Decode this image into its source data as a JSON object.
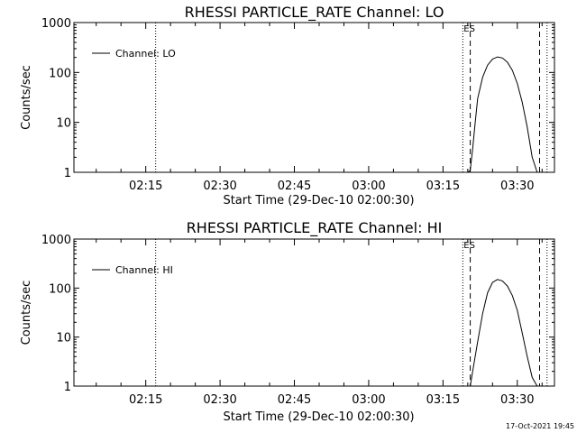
{
  "chart_data": [
    {
      "type": "line",
      "title": "RHESSI PARTICLE_RATE Channel: LO",
      "ylabel": "Counts/sec",
      "xlabel": "Start Time (29-Dec-10 02:00:30)",
      "yscale": "log",
      "ylim": [
        1,
        1000
      ],
      "y_ticks": [
        1,
        10,
        100,
        1000
      ],
      "y_tick_labels": [
        "1",
        "10",
        "100",
        "1000"
      ],
      "xlim": [
        "02:00:30",
        "03:37:30"
      ],
      "x_ticks": [
        "02:15",
        "02:30",
        "02:45",
        "03:00",
        "03:15",
        "03:30"
      ],
      "legend": {
        "placement": "top-left"
      },
      "series": [
        {
          "name": "Channel: LO",
          "x": [
            "03:20",
            "03:20:30",
            "03:21",
            "03:21:30",
            "03:22",
            "03:23",
            "03:24",
            "03:25",
            "03:26",
            "03:27",
            "03:28",
            "03:29",
            "03:30",
            "03:31",
            "03:32",
            "03:33",
            "03:34"
          ],
          "values": [
            1,
            1.1,
            3,
            10,
            30,
            80,
            140,
            185,
            205,
            195,
            160,
            110,
            60,
            25,
            8,
            2,
            1
          ]
        }
      ],
      "vertical_lines": [
        {
          "x": "02:17",
          "style": "dotted"
        },
        {
          "x": "03:19",
          "style": "dotted"
        },
        {
          "x": "03:20:30",
          "style": "dashed",
          "label": "ES"
        },
        {
          "x": "03:34:30",
          "style": "dashed"
        },
        {
          "x": "03:36",
          "style": "dotted"
        }
      ],
      "grid": false
    },
    {
      "type": "line",
      "title": "RHESSI PARTICLE_RATE Channel: HI",
      "ylabel": "Counts/sec",
      "xlabel": "Start Time (29-Dec-10 02:00:30)",
      "yscale": "log",
      "ylim": [
        1,
        1000
      ],
      "y_ticks": [
        1,
        10,
        100,
        1000
      ],
      "y_tick_labels": [
        "1",
        "10",
        "100",
        "1000"
      ],
      "xlim": [
        "02:00:30",
        "03:37:30"
      ],
      "x_ticks": [
        "02:15",
        "02:30",
        "02:45",
        "03:00",
        "03:15",
        "03:30"
      ],
      "legend": {
        "placement": "top-left"
      },
      "series": [
        {
          "name": "Channel: HI",
          "x": [
            "03:20:30",
            "03:21",
            "03:22",
            "03:23",
            "03:24",
            "03:25",
            "03:26",
            "03:27",
            "03:28",
            "03:29",
            "03:30",
            "03:31",
            "03:32",
            "03:33",
            "03:34"
          ],
          "values": [
            1,
            2,
            8,
            30,
            80,
            130,
            150,
            140,
            110,
            70,
            35,
            12,
            4,
            1.5,
            1
          ]
        }
      ],
      "vertical_lines": [
        {
          "x": "02:17",
          "style": "dotted"
        },
        {
          "x": "03:19",
          "style": "dotted"
        },
        {
          "x": "03:20:30",
          "style": "dashed",
          "label": "ES"
        },
        {
          "x": "03:34:30",
          "style": "dashed"
        },
        {
          "x": "03:36",
          "style": "dotted"
        }
      ],
      "grid": false
    }
  ],
  "footer": {
    "timestamp": "17-Oct-2021 19:45"
  }
}
